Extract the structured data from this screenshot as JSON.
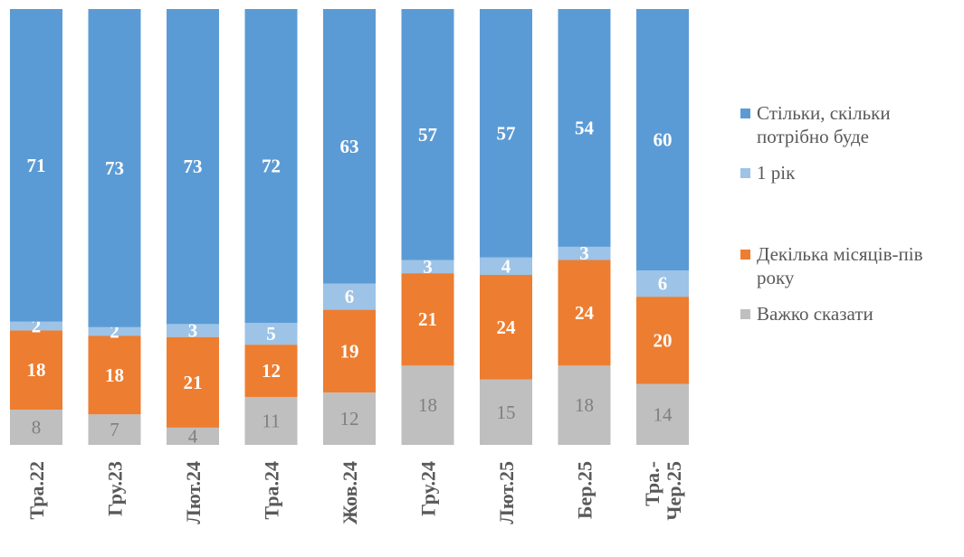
{
  "chart_data": {
    "type": "bar",
    "stacked": true,
    "orientation": "vertical",
    "title": "",
    "xlabel": "",
    "ylabel": "",
    "ylim": [
      0,
      100
    ],
    "grid": false,
    "legend_position": "right",
    "categories": [
      "Тра.22",
      "Гру.23",
      "Лют.24",
      "Тра.24",
      "Жов.24",
      "Гру.24",
      "Лют.25",
      "Бер.25",
      "Тра.-Чер.25"
    ],
    "category_lines": [
      [
        "Тра.22"
      ],
      [
        "Гру.23"
      ],
      [
        "Лют.24"
      ],
      [
        "Тра.24"
      ],
      [
        "Жов.24"
      ],
      [
        "Гру.24"
      ],
      [
        "Лют.25"
      ],
      [
        "Бер.25"
      ],
      [
        "Тра.-",
        "Чер.25"
      ]
    ],
    "series": [
      {
        "name": "Важко сказати",
        "color": "#bfbfbf",
        "label_color": "#7f7f7f",
        "values": [
          8,
          7,
          4,
          11,
          12,
          18,
          15,
          18,
          14
        ]
      },
      {
        "name": "Декілька місяців-пів року",
        "color": "#ed7d31",
        "label_color": "#ffffff",
        "values": [
          18,
          18,
          21,
          12,
          19,
          21,
          24,
          24,
          20
        ]
      },
      {
        "name": "1 рік",
        "color": "#9dc3e6",
        "label_color": "#ffffff",
        "values": [
          2,
          2,
          3,
          5,
          6,
          3,
          4,
          3,
          6
        ]
      },
      {
        "name": "Стільки, скільки потрібно буде",
        "color": "#5b9bd5",
        "label_color": "#ffffff",
        "values": [
          71,
          73,
          73,
          72,
          63,
          57,
          57,
          54,
          60
        ]
      }
    ]
  },
  "legend": {
    "items": [
      {
        "lines": [
          "Стільки, скільки",
          "потрібно буде"
        ],
        "color": "#5b9bd5"
      },
      {
        "lines": [
          "1 рік"
        ],
        "color": "#9dc3e6"
      },
      {
        "lines": [
          "Декілька місяців-пів",
          "року"
        ],
        "color": "#ed7d31"
      },
      {
        "lines": [
          "Важко сказати"
        ],
        "color": "#bfbfbf"
      }
    ]
  }
}
